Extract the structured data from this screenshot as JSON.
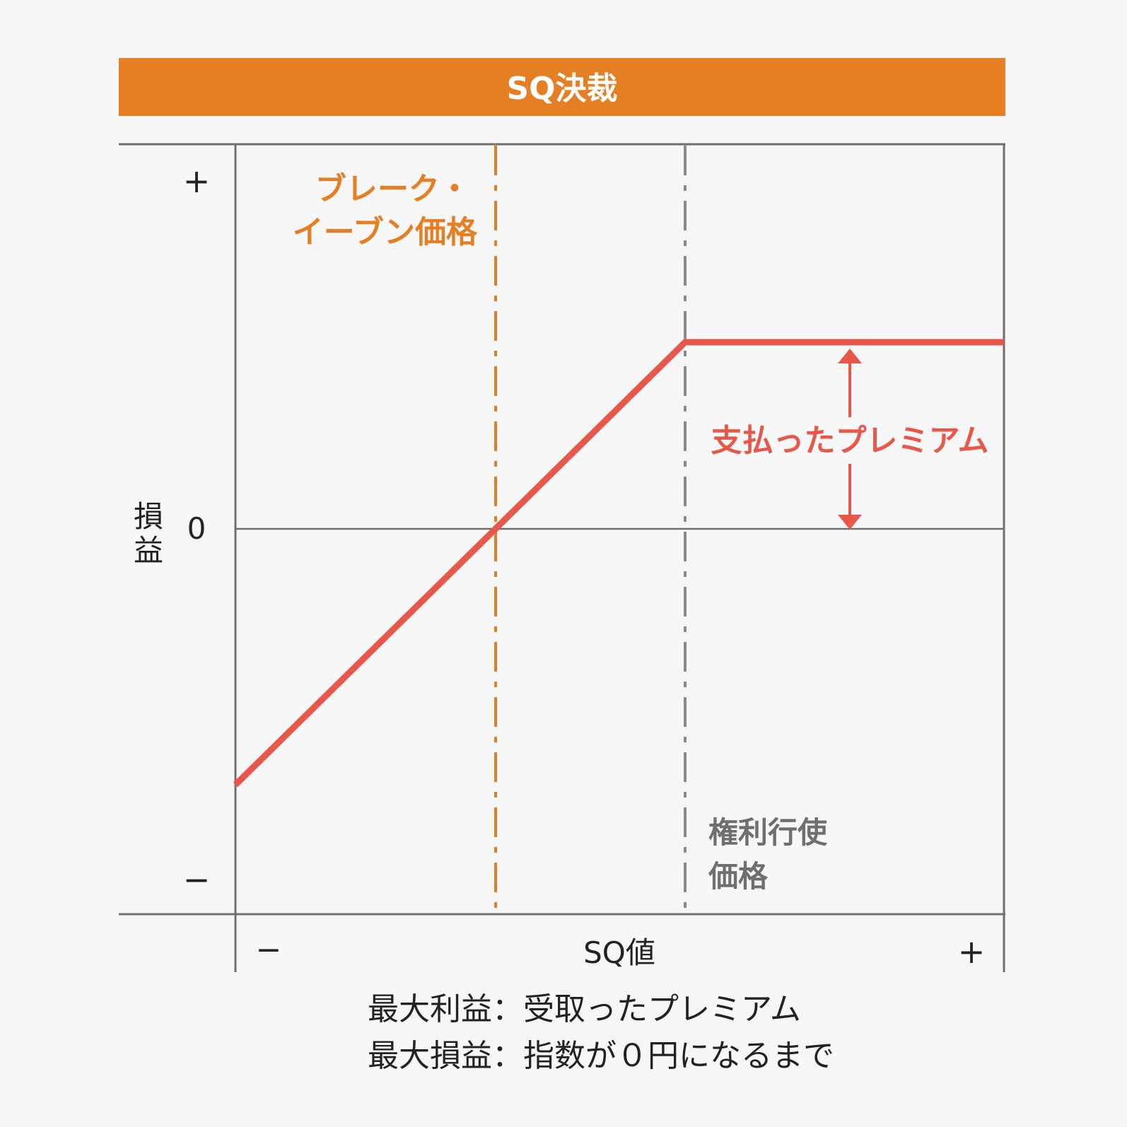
{
  "header": {
    "title": "SQ決裁",
    "background_color": "#e57f24",
    "text_color": "#ffffff"
  },
  "y_axis": {
    "label": "損益",
    "plus_label": "+",
    "zero_label": "0",
    "minus_label": "−"
  },
  "x_axis": {
    "label": "SQ値",
    "minus_label": "−",
    "plus_label": "+"
  },
  "annotations": {
    "break_even": {
      "line1": "ブレーク・",
      "line2": "イーブン価格",
      "color": "#e57f24"
    },
    "strike": {
      "line1": "権利行使",
      "line2": "価格",
      "color": "#6f6f6f"
    },
    "premium": {
      "label": "支払ったプレミアム",
      "color": "#e8584a"
    }
  },
  "summary": {
    "max_profit": "最大利益：受取ったプレミアム",
    "max_loss": "最大損益：指数が０円になるまで"
  },
  "colors": {
    "payoff_line": "#e8584a",
    "axis": "#6f6f6f",
    "background": "#f7f7f7"
  }
}
